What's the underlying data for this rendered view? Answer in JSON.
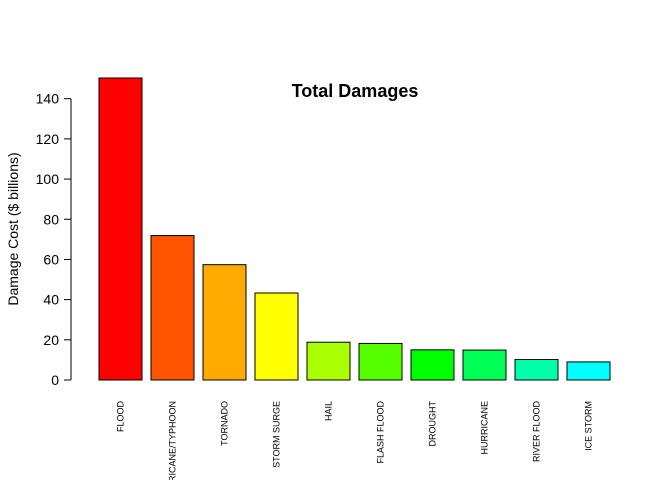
{
  "chart_data": {
    "type": "bar",
    "title": "Total Damages",
    "xlabel": "",
    "ylabel": "Damage Cost ($ billions)",
    "categories": [
      "FLOOD",
      "HURRICANE/TYPHOON",
      "TORNADO",
      "STORM SURGE",
      "HAIL",
      "FLASH FLOOD",
      "DROUGHT",
      "HURRICANE",
      "RIVER FLOOD",
      "ICE STORM"
    ],
    "values": [
      150.3,
      71.9,
      57.4,
      43.3,
      18.8,
      18.2,
      15.0,
      14.9,
      10.2,
      9.0
    ],
    "colors": [
      "#ff0000",
      "#ff5500",
      "#ffaa00",
      "#ffff00",
      "#aaff00",
      "#55ff00",
      "#00ff00",
      "#00ff55",
      "#00ffaa",
      "#00ffff"
    ],
    "yticks": [
      0,
      20,
      40,
      60,
      80,
      100,
      120,
      140
    ],
    "ylim": [
      0,
      150.3
    ],
    "grid": false,
    "legend": "none"
  }
}
